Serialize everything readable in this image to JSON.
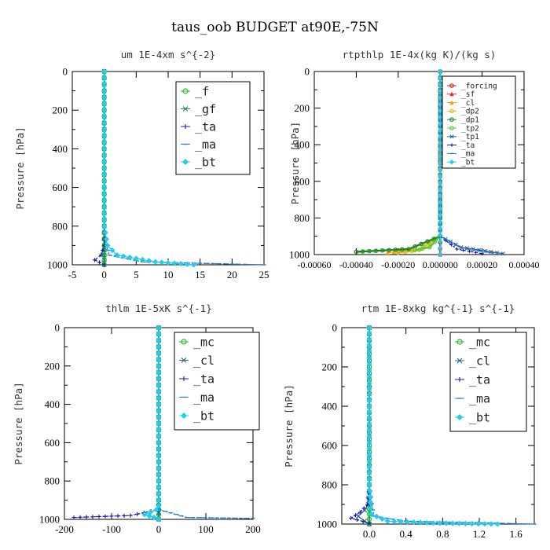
{
  "figure_title": "taus_oob  BUDGET at90E,-75N",
  "chart_data": [
    {
      "type": "line",
      "title": "um  1E-4xm s^{-2}",
      "ylabel": "Pressure [hPa]",
      "xlim": [
        -5,
        25
      ],
      "ylim": [
        0,
        1000
      ],
      "y_inverted": true,
      "xticks": [
        "-5",
        "0",
        "5",
        "10",
        "15",
        "20",
        "25"
      ],
      "yticks": [
        "0",
        "200",
        "400",
        "600",
        "800",
        "1000"
      ],
      "legend": [
        "_f",
        "_gf",
        "_ta",
        "_ma",
        "_bt"
      ],
      "legend_position": "top-right",
      "series": [
        {
          "name": "_f",
          "color": "#22bb22",
          "marker": "circle",
          "x": [
            0,
            0,
            0,
            0,
            0,
            0,
            0,
            0,
            0,
            0,
            0,
            0
          ],
          "y": [
            0,
            100,
            200,
            300,
            400,
            500,
            600,
            700,
            800,
            900,
            950,
            1000
          ]
        },
        {
          "name": "_gf",
          "color": "#228866",
          "marker": "x",
          "x": [
            0,
            0,
            0,
            0,
            0,
            0,
            0,
            0,
            0,
            0,
            0,
            0
          ],
          "y": [
            0,
            100,
            200,
            300,
            400,
            500,
            600,
            700,
            800,
            900,
            950,
            1000
          ]
        },
        {
          "name": "_ta",
          "color": "#1a1aa8",
          "marker": "plus",
          "x": [
            0,
            0,
            0,
            0,
            0,
            0,
            -0.5,
            -1.5,
            0
          ],
          "y": [
            0,
            200,
            400,
            600,
            800,
            900,
            950,
            975,
            1000
          ]
        },
        {
          "name": "_ma",
          "color": "#2277cc",
          "marker": "dash",
          "x": [
            0,
            0,
            0,
            0,
            0,
            0.3,
            0.8,
            6,
            25
          ],
          "y": [
            0,
            200,
            400,
            600,
            800,
            900,
            950,
            985,
            1000
          ]
        },
        {
          "name": "_bt",
          "color": "#22ccee",
          "marker": "diamond",
          "x": [
            0,
            0,
            0,
            0,
            0,
            0.5,
            2,
            8,
            14
          ],
          "y": [
            0,
            200,
            400,
            600,
            800,
            900,
            950,
            985,
            1000
          ]
        }
      ]
    },
    {
      "type": "line",
      "title": "rtpthlp  1E-4x(kg K)/(kg s)",
      "ylabel": "Pressure [hPa]",
      "xlim": [
        -0.0006,
        0.0004
      ],
      "ylim": [
        0,
        1000
      ],
      "y_inverted": true,
      "xticks": [
        "-0.00060",
        "-0.00040",
        "-0.00020",
        "0.000000",
        "0.00020",
        "0.00040"
      ],
      "yticks": [
        "0",
        "200",
        "400",
        "600",
        "800",
        "1000"
      ],
      "legend": [
        "_forcing",
        "_sf",
        "_cl",
        "_dp2",
        "_dp1",
        "_tp2",
        "_tp1",
        "_ta",
        "_ma",
        "_bt"
      ],
      "legend_position": "top-right",
      "series": [
        {
          "name": "_forcing",
          "color": "#cc2222",
          "marker": "circle",
          "x": [
            0,
            0,
            0,
            0,
            0,
            0,
            0,
            0
          ],
          "y": [
            0,
            150,
            300,
            450,
            600,
            750,
            900,
            1000
          ]
        },
        {
          "name": "_sf",
          "color": "#ee2222",
          "marker": "triangle",
          "x": [
            0,
            0,
            0,
            0,
            0
          ],
          "y": [
            0,
            250,
            500,
            750,
            1000
          ]
        },
        {
          "name": "_cl",
          "color": "#ff9900",
          "marker": "triangle",
          "x": [
            0,
            0,
            0,
            -0.0001,
            -0.00025
          ],
          "y": [
            0,
            500,
            900,
            970,
            990
          ]
        },
        {
          "name": "_dp2",
          "color": "#ddbb22",
          "marker": "circle",
          "x": [
            0,
            0,
            0,
            -0.0001,
            -0.0002
          ],
          "y": [
            0,
            500,
            900,
            975,
            990
          ]
        },
        {
          "name": "_dp1",
          "color": "#228822",
          "marker": "circle",
          "x": [
            0,
            0,
            0,
            -0.00015,
            -0.0004
          ],
          "y": [
            0,
            500,
            900,
            970,
            985
          ]
        },
        {
          "name": "_tp2",
          "color": "#55cc33",
          "marker": "circle",
          "x": [
            0,
            0,
            0,
            -5e-05,
            -0.00012
          ],
          "y": [
            0,
            500,
            900,
            960,
            975
          ]
        },
        {
          "name": "_tp1",
          "color": "#226699",
          "marker": "x",
          "x": [
            0,
            0,
            0,
            0.0001,
            0.0003
          ],
          "y": [
            0,
            500,
            900,
            960,
            995
          ]
        },
        {
          "name": "_ta",
          "color": "#1a1aa8",
          "marker": "plus",
          "x": [
            0,
            0,
            0,
            8e-05,
            0.0002
          ],
          "y": [
            0,
            500,
            900,
            970,
            995
          ]
        },
        {
          "name": "_ma",
          "color": "#2277cc",
          "marker": "dash",
          "x": [
            0,
            0,
            0,
            0.0001,
            0.00025
          ],
          "y": [
            0,
            500,
            900,
            965,
            992
          ]
        },
        {
          "name": "_bt",
          "color": "#22ccee",
          "marker": "diamond",
          "x": [
            0,
            0,
            0,
            0,
            0
          ],
          "y": [
            0,
            250,
            500,
            750,
            1000
          ]
        }
      ]
    },
    {
      "type": "line",
      "title": "thlm  1E-5xK s^{-1}",
      "ylabel": "Pressure [hPa]",
      "xlim": [
        -200,
        200
      ],
      "ylim": [
        0,
        1000
      ],
      "y_inverted": true,
      "xticks": [
        "-200",
        "-100",
        "0",
        "100",
        "200"
      ],
      "yticks": [
        "0",
        "200",
        "400",
        "600",
        "800",
        "1000"
      ],
      "legend": [
        "_mc",
        "_cl",
        "_ta",
        "_ma",
        "_bt"
      ],
      "legend_position": "top-right",
      "series": [
        {
          "name": "_mc",
          "color": "#22bb22",
          "marker": "circle",
          "x": [
            0,
            0,
            0,
            0,
            0,
            0,
            0,
            0,
            0,
            0,
            0,
            0
          ],
          "y": [
            0,
            100,
            200,
            300,
            400,
            500,
            600,
            700,
            800,
            900,
            950,
            1000
          ]
        },
        {
          "name": "_cl",
          "color": "#226699",
          "marker": "x",
          "x": [
            0,
            0,
            0,
            0,
            0,
            0,
            0
          ],
          "y": [
            0,
            200,
            400,
            600,
            800,
            900,
            1000
          ]
        },
        {
          "name": "_ta",
          "color": "#1a1aa8",
          "marker": "plus",
          "x": [
            0,
            0,
            0,
            0,
            -2,
            -60,
            -180
          ],
          "y": [
            0,
            400,
            800,
            900,
            950,
            980,
            990
          ]
        },
        {
          "name": "_ma",
          "color": "#2277cc",
          "marker": "dash",
          "x": [
            0,
            0,
            0,
            0,
            2,
            60,
            200
          ],
          "y": [
            0,
            400,
            800,
            900,
            950,
            990,
            995
          ]
        },
        {
          "name": "_bt",
          "color": "#22ccee",
          "marker": "diamond",
          "x": [
            0,
            0,
            0,
            0,
            0,
            -5,
            -30,
            -10,
            0
          ],
          "y": [
            0,
            400,
            800,
            900,
            930,
            950,
            975,
            990,
            1000
          ]
        }
      ]
    },
    {
      "type": "line",
      "title": "rtm  1E-8xkg kg^{-1} s^{-1}",
      "ylabel": "Pressure [hPa]",
      "xlim": [
        -0.3,
        1.8
      ],
      "ylim": [
        0,
        1000
      ],
      "y_inverted": true,
      "xticks": [
        "0.0",
        "0.4",
        "0.8",
        "1.2",
        "1.6"
      ],
      "xtick_values": [
        0,
        0.4,
        0.8,
        1.2,
        1.6
      ],
      "yticks": [
        "0",
        "200",
        "400",
        "600",
        "800",
        "1000"
      ],
      "legend": [
        "_mc",
        "_cl",
        "_ta",
        "_ma",
        "_bt"
      ],
      "legend_position": "top-right",
      "series": [
        {
          "name": "_mc",
          "color": "#22bb22",
          "marker": "circle",
          "x": [
            0,
            0,
            0,
            0,
            0,
            0,
            0,
            0,
            0,
            0,
            0,
            0
          ],
          "y": [
            0,
            100,
            200,
            300,
            400,
            500,
            600,
            700,
            800,
            900,
            950,
            1000
          ]
        },
        {
          "name": "_cl",
          "color": "#226699",
          "marker": "x",
          "x": [
            0,
            0,
            0,
            -0.01,
            -0.05,
            -0.12,
            -0.05,
            0
          ],
          "y": [
            0,
            400,
            800,
            900,
            930,
            960,
            985,
            1000
          ]
        },
        {
          "name": "_ta",
          "color": "#1a1aa8",
          "marker": "plus",
          "x": [
            0,
            0,
            0,
            -0.02,
            -0.1,
            -0.2,
            0
          ],
          "y": [
            0,
            400,
            800,
            900,
            940,
            970,
            995
          ]
        },
        {
          "name": "_ma",
          "color": "#2277cc",
          "marker": "dash",
          "x": [
            0,
            0,
            0,
            0.05,
            0.4,
            1.8
          ],
          "y": [
            0,
            400,
            800,
            960,
            985,
            1000
          ]
        },
        {
          "name": "_bt",
          "color": "#22ccee",
          "marker": "diamond",
          "x": [
            0,
            0,
            0,
            0.02,
            0.2,
            0.7,
            1.4
          ],
          "y": [
            0,
            400,
            800,
            950,
            985,
            995,
            1000
          ]
        }
      ]
    }
  ]
}
